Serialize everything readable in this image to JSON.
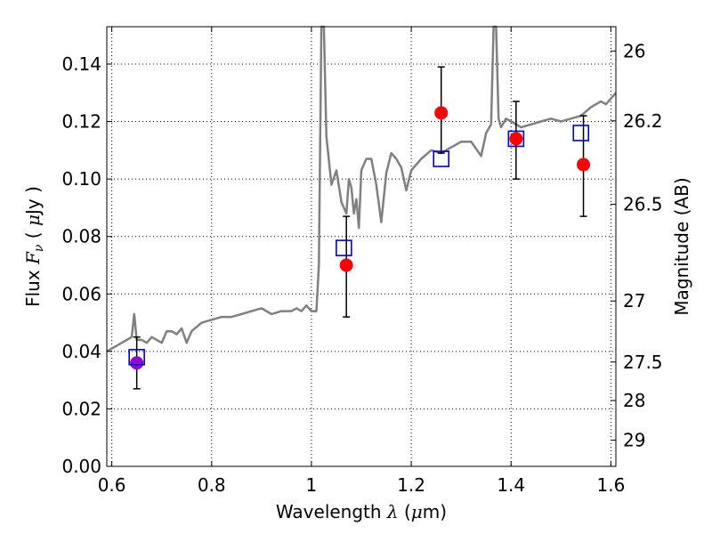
{
  "chart_data": {
    "type": "scatter",
    "xlabel": {
      "prefix": "Wavelength ",
      "symbol": "λ",
      "unit_open": " (",
      "unit_mu": "μ",
      "unit_close": "m)"
    },
    "ylabel": {
      "prefix": "Flux ",
      "symbol": "F",
      "subscript": "ν",
      "unit_open": " ( ",
      "unit_mu": "μ",
      "unit_close": "Jy )"
    },
    "y2label": "Magnitude (AB)",
    "xlim": [
      0.59,
      1.61
    ],
    "ylim": [
      0.0,
      0.153
    ],
    "grid": true,
    "x_ticks": [
      0.6,
      0.8,
      1.0,
      1.2,
      1.4,
      1.6
    ],
    "x_tick_labels": [
      "0.6",
      "0.8",
      "1",
      "1.2",
      "1.4",
      "1.6"
    ],
    "y_ticks": [
      0.0,
      0.02,
      0.04,
      0.06,
      0.08,
      0.1,
      0.12,
      0.14
    ],
    "y_tick_labels": [
      "0.00",
      "0.02",
      "0.04",
      "0.06",
      "0.08",
      "0.10",
      "0.12",
      "0.14"
    ],
    "y2_ticks": [
      26,
      26.2,
      26.5,
      27,
      27.5,
      28,
      29
    ],
    "y2_tick_labels": [
      "26",
      "26.2",
      "26.5",
      "27",
      "27.5",
      "28",
      "29"
    ],
    "colors": {
      "spectrum": "#808080",
      "measured": "#ff0000",
      "measured_optical": "#9400d3",
      "model": "#0000cc",
      "errorbar": "#000000"
    },
    "spectrum": {
      "name": "",
      "points": [
        [
          0.59,
          0.04
        ],
        [
          0.6,
          0.041
        ],
        [
          0.61,
          0.042
        ],
        [
          0.62,
          0.043
        ],
        [
          0.63,
          0.044
        ],
        [
          0.64,
          0.045
        ],
        [
          0.645,
          0.053
        ],
        [
          0.65,
          0.044
        ],
        [
          0.66,
          0.044
        ],
        [
          0.67,
          0.043
        ],
        [
          0.68,
          0.045
        ],
        [
          0.69,
          0.044
        ],
        [
          0.7,
          0.043
        ],
        [
          0.71,
          0.047
        ],
        [
          0.72,
          0.047
        ],
        [
          0.73,
          0.046
        ],
        [
          0.74,
          0.048
        ],
        [
          0.75,
          0.043
        ],
        [
          0.76,
          0.047
        ],
        [
          0.78,
          0.05
        ],
        [
          0.8,
          0.051
        ],
        [
          0.82,
          0.052
        ],
        [
          0.84,
          0.052
        ],
        [
          0.86,
          0.053
        ],
        [
          0.88,
          0.054
        ],
        [
          0.9,
          0.055
        ],
        [
          0.91,
          0.054
        ],
        [
          0.92,
          0.053
        ],
        [
          0.94,
          0.054
        ],
        [
          0.96,
          0.054
        ],
        [
          0.97,
          0.055
        ],
        [
          0.98,
          0.054
        ],
        [
          0.99,
          0.056
        ],
        [
          1.0,
          0.054
        ],
        [
          1.01,
          0.054
        ],
        [
          1.015,
          0.07
        ],
        [
          1.02,
          0.153
        ],
        [
          1.025,
          0.153
        ],
        [
          1.03,
          0.115
        ],
        [
          1.04,
          0.098
        ],
        [
          1.05,
          0.103
        ],
        [
          1.06,
          0.092
        ],
        [
          1.07,
          0.088
        ],
        [
          1.075,
          0.1
        ],
        [
          1.08,
          0.097
        ],
        [
          1.085,
          0.088
        ],
        [
          1.09,
          0.093
        ],
        [
          1.095,
          0.083
        ],
        [
          1.1,
          0.103
        ],
        [
          1.11,
          0.107
        ],
        [
          1.12,
          0.107
        ],
        [
          1.13,
          0.098
        ],
        [
          1.14,
          0.085
        ],
        [
          1.15,
          0.102
        ],
        [
          1.16,
          0.109
        ],
        [
          1.17,
          0.107
        ],
        [
          1.18,
          0.104
        ],
        [
          1.19,
          0.096
        ],
        [
          1.2,
          0.103
        ],
        [
          1.22,
          0.107
        ],
        [
          1.24,
          0.11
        ],
        [
          1.26,
          0.109
        ],
        [
          1.28,
          0.111
        ],
        [
          1.3,
          0.113
        ],
        [
          1.32,
          0.113
        ],
        [
          1.34,
          0.108
        ],
        [
          1.35,
          0.116
        ],
        [
          1.36,
          0.119
        ],
        [
          1.365,
          0.153
        ],
        [
          1.37,
          0.153
        ],
        [
          1.375,
          0.121
        ],
        [
          1.38,
          0.118
        ],
        [
          1.39,
          0.121
        ],
        [
          1.4,
          0.12
        ],
        [
          1.42,
          0.118
        ],
        [
          1.44,
          0.119
        ],
        [
          1.46,
          0.12
        ],
        [
          1.48,
          0.121
        ],
        [
          1.5,
          0.12
        ],
        [
          1.52,
          0.121
        ],
        [
          1.54,
          0.122
        ],
        [
          1.56,
          0.125
        ],
        [
          1.58,
          0.127
        ],
        [
          1.59,
          0.126
        ],
        [
          1.61,
          0.13
        ]
      ]
    },
    "measured_points": [
      {
        "x": 0.65,
        "y": 0.036,
        "err_low": 0.009,
        "err_high": 0.009,
        "color_key": "measured_optical"
      },
      {
        "x": 1.07,
        "y": 0.07,
        "err_low": 0.018,
        "err_high": 0.017,
        "color_key": "measured"
      },
      {
        "x": 1.26,
        "y": 0.123,
        "err_low": 0.014,
        "err_high": 0.016,
        "color_key": "measured"
      },
      {
        "x": 1.41,
        "y": 0.114,
        "err_low": 0.014,
        "err_high": 0.013,
        "color_key": "measured"
      },
      {
        "x": 1.545,
        "y": 0.105,
        "err_low": 0.018,
        "err_high": 0.017,
        "color_key": "measured"
      }
    ],
    "model_points": [
      {
        "x": 0.65,
        "y": 0.038
      },
      {
        "x": 1.065,
        "y": 0.076
      },
      {
        "x": 1.26,
        "y": 0.107
      },
      {
        "x": 1.41,
        "y": 0.114
      },
      {
        "x": 1.54,
        "y": 0.116
      }
    ]
  }
}
